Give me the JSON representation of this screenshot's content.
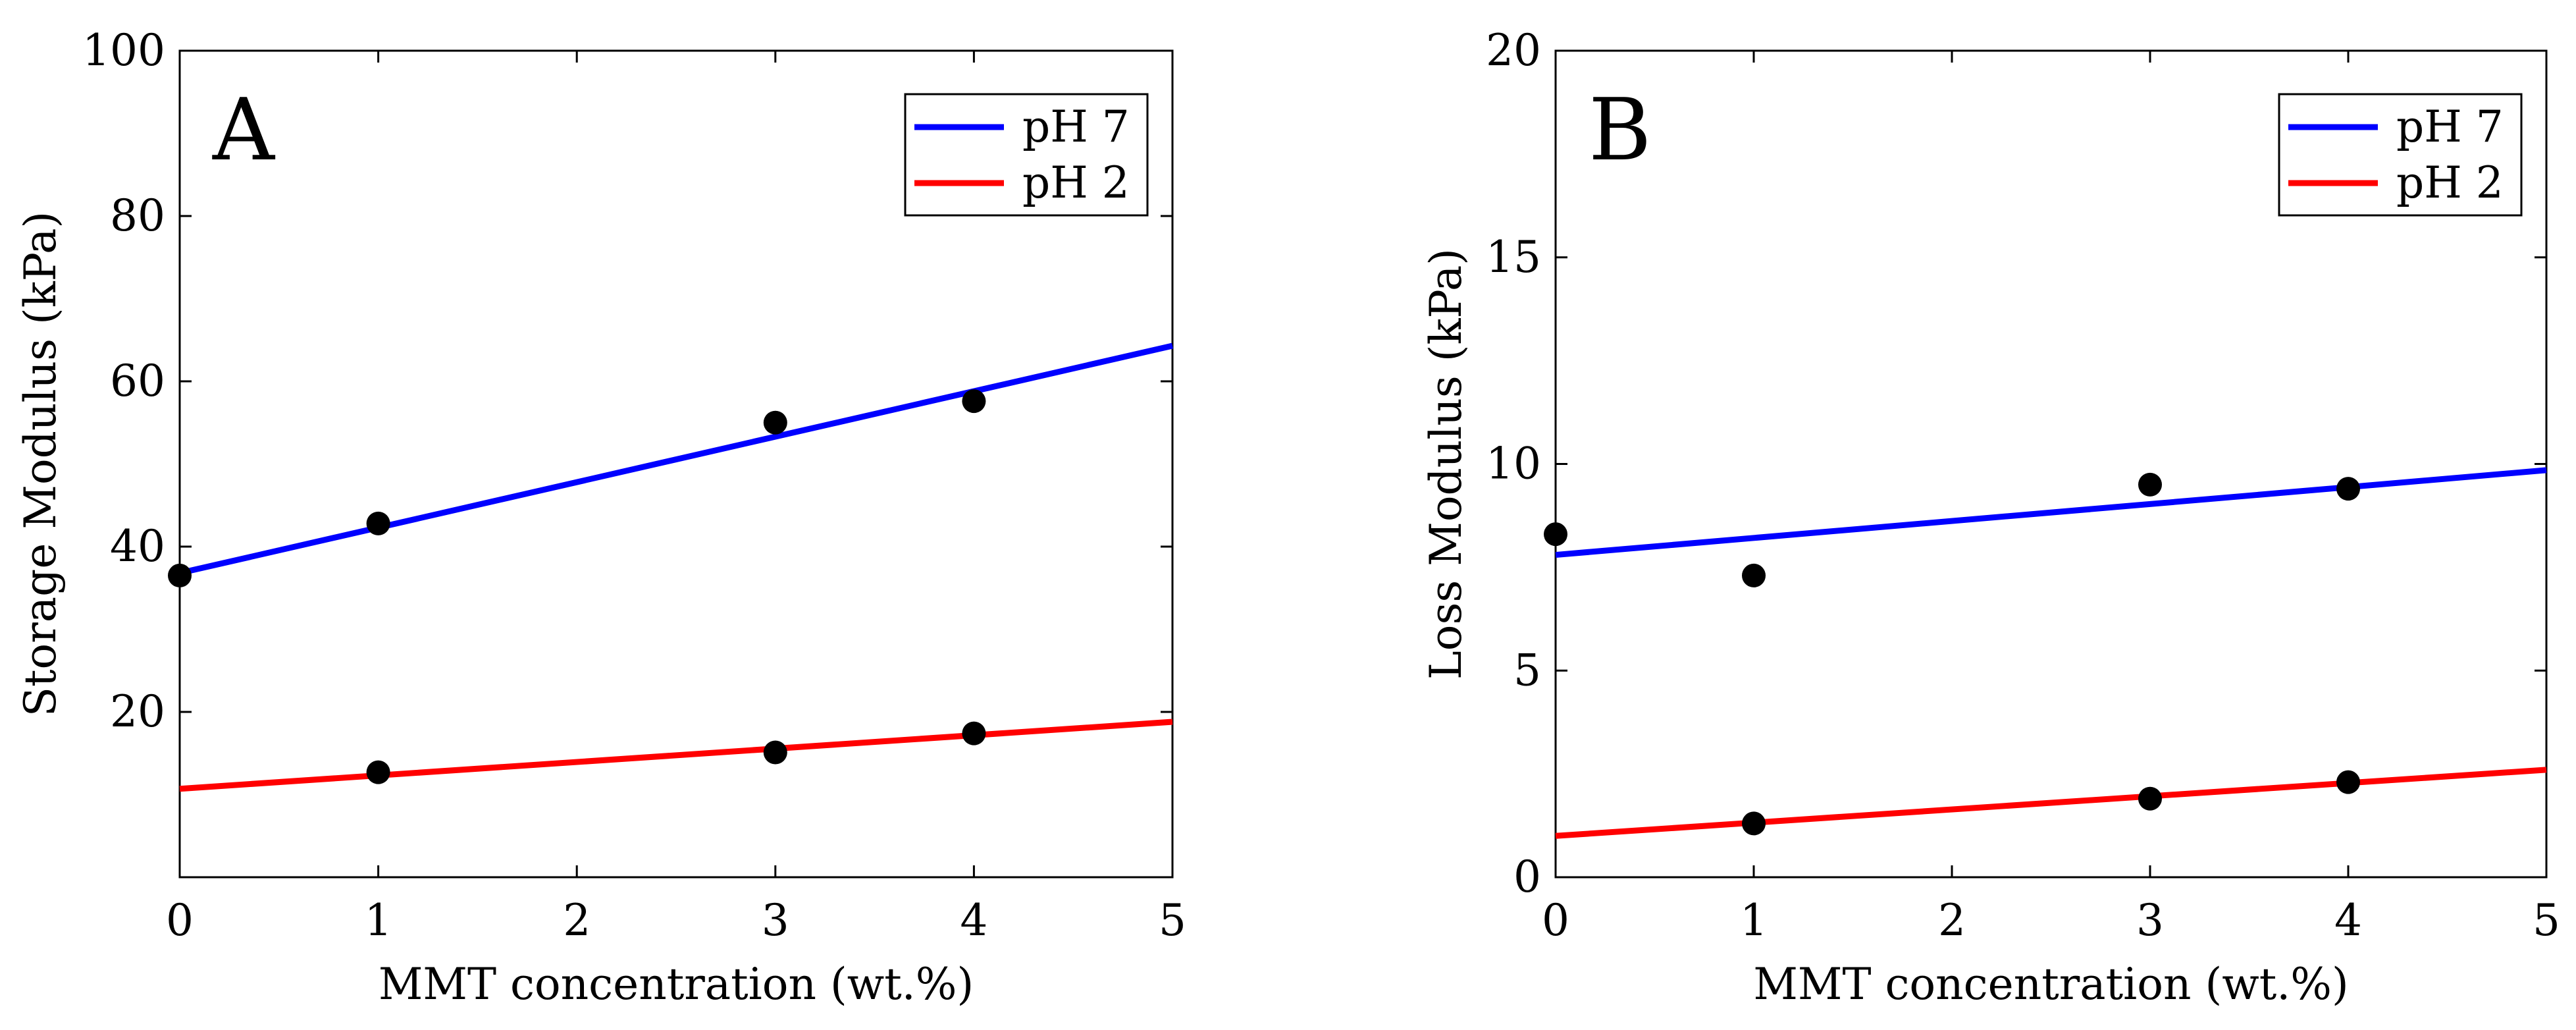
{
  "chart_data": [
    {
      "type": "scatter",
      "panel_label": "A",
      "xlabel": "MMT concentration (wt.%)",
      "ylabel": "Storage Modulus (kPa)",
      "xlim": [
        0,
        5
      ],
      "ylim": [
        0,
        100
      ],
      "x_ticks": [
        0,
        1,
        2,
        3,
        4,
        5
      ],
      "y_ticks": [
        20,
        40,
        60,
        80,
        100
      ],
      "legend_position": "top-right",
      "marker_color": "#000000",
      "series": [
        {
          "name": "pH 7",
          "color": "#0000ff",
          "points": {
            "x": [
              0,
              1,
              3,
              4
            ],
            "y": [
              36.5,
              42.8,
              55.0,
              57.6
            ]
          },
          "fit_line": {
            "x": [
              0,
              5
            ],
            "y": [
              36.8,
              64.3
            ]
          }
        },
        {
          "name": "pH 2",
          "color": "#ff0000",
          "points": {
            "x": [
              1,
              3,
              4
            ],
            "y": [
              12.7,
              15.1,
              17.4
            ]
          },
          "fit_line": {
            "x": [
              0,
              5
            ],
            "y": [
              10.7,
              18.8
            ]
          }
        }
      ]
    },
    {
      "type": "scatter",
      "panel_label": "B",
      "xlabel": "MMT concentration (wt.%)",
      "ylabel": "Loss Modulus (kPa)",
      "xlim": [
        0,
        5
      ],
      "ylim": [
        0,
        20
      ],
      "x_ticks": [
        0,
        1,
        2,
        3,
        4,
        5
      ],
      "y_ticks": [
        0,
        5,
        10,
        15,
        20
      ],
      "legend_position": "top-right",
      "marker_color": "#000000",
      "series": [
        {
          "name": "pH 7",
          "color": "#0000ff",
          "points": {
            "x": [
              0,
              1,
              3,
              4
            ],
            "y": [
              8.3,
              7.3,
              9.5,
              9.4
            ]
          },
          "fit_line": {
            "x": [
              0,
              5
            ],
            "y": [
              7.8,
              9.85
            ]
          }
        },
        {
          "name": "pH 2",
          "color": "#ff0000",
          "points": {
            "x": [
              1,
              3,
              4
            ],
            "y": [
              1.3,
              1.9,
              2.3
            ]
          },
          "fit_line": {
            "x": [
              0,
              5
            ],
            "y": [
              1.0,
              2.6
            ]
          }
        }
      ]
    }
  ]
}
